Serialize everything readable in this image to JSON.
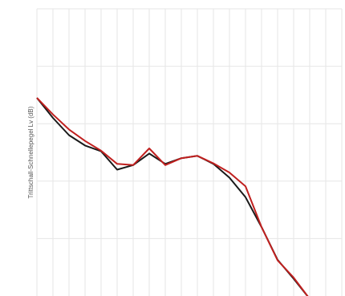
{
  "chart_data": {
    "type": "line",
    "title": "",
    "xlabel": "",
    "ylabel": "Trittschall-Schnellepegel Lv (dB)",
    "grid": true,
    "x": [
      1,
      2,
      3,
      4,
      5,
      6,
      7,
      8,
      9,
      10,
      11,
      12,
      13,
      14,
      15,
      16,
      17,
      18
    ],
    "xlim": [
      1,
      20
    ],
    "ylim": [
      0,
      5
    ],
    "series": [
      {
        "color": "#1a1a1a",
        "values": [
          3.45,
          3.1,
          2.8,
          2.62,
          2.52,
          2.2,
          2.28,
          2.48,
          2.3,
          2.4,
          2.44,
          2.3,
          2.06,
          1.72,
          1.2,
          0.63,
          0.3,
          -0.05
        ]
      },
      {
        "color": "#c0201f",
        "values": [
          3.45,
          3.16,
          2.9,
          2.7,
          2.53,
          2.3,
          2.28,
          2.57,
          2.28,
          2.4,
          2.44,
          2.31,
          2.15,
          1.91,
          1.2,
          0.62,
          0.32,
          -0.05
        ]
      }
    ]
  }
}
